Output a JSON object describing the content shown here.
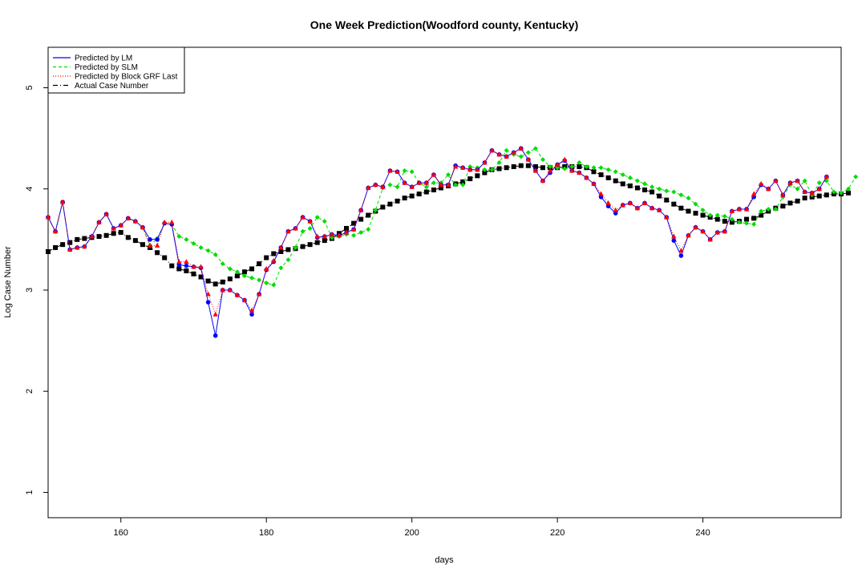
{
  "chart_data": {
    "type": "line",
    "title": "One Week Prediction(Woodford county, Kentucky)",
    "xlabel": "days",
    "ylabel": "Log Case Number",
    "xlim": [
      150,
      259
    ],
    "ylim": [
      0.75,
      5.4
    ],
    "xticks": [
      "160",
      "180",
      "200",
      "220",
      "240"
    ],
    "yticks": [
      "1",
      "2",
      "3",
      "4",
      "5"
    ],
    "grid": false,
    "legend_position": "top-left",
    "legend": [
      {
        "label": "Predicted by LM",
        "color": "#0000ff",
        "dash": "solid"
      },
      {
        "label": "Predicted by SLM",
        "color": "#00dd00",
        "dash": "dashed"
      },
      {
        "label": "Predicted by Block GRF Last",
        "color": "#ff0000",
        "dash": "dotted"
      },
      {
        "label": "Actual Case Number",
        "color": "#000000",
        "dash": "dashdot"
      }
    ],
    "x_start": 150,
    "series": [
      {
        "name": "Actual Case Number",
        "color": "#000000",
        "marker": "square",
        "values": [
          3.38,
          3.42,
          3.45,
          3.47,
          3.5,
          3.51,
          3.52,
          3.53,
          3.54,
          3.56,
          3.57,
          3.52,
          3.49,
          3.45,
          3.42,
          3.37,
          3.32,
          3.24,
          3.21,
          3.19,
          3.16,
          3.13,
          3.09,
          3.06,
          3.08,
          3.11,
          3.14,
          3.18,
          3.21,
          3.26,
          3.32,
          3.36,
          3.38,
          3.4,
          3.41,
          3.43,
          3.45,
          3.47,
          3.49,
          3.51,
          3.56,
          3.61,
          3.66,
          3.7,
          3.74,
          3.78,
          3.82,
          3.85,
          3.88,
          3.91,
          3.93,
          3.95,
          3.97,
          3.99,
          4.01,
          4.03,
          4.05,
          4.07,
          4.1,
          4.13,
          4.16,
          4.19,
          4.2,
          4.21,
          4.22,
          4.23,
          4.23,
          4.22,
          4.21,
          4.21,
          4.21,
          4.22,
          4.22,
          4.22,
          4.21,
          4.17,
          4.14,
          4.11,
          4.08,
          4.05,
          4.03,
          4.01,
          3.99,
          3.97,
          3.93,
          3.89,
          3.85,
          3.81,
          3.78,
          3.76,
          3.74,
          3.72,
          3.7,
          3.68,
          3.67,
          3.68,
          3.7,
          3.71,
          3.74,
          3.78,
          3.81,
          3.83,
          3.86,
          3.88,
          3.91,
          3.92,
          3.93,
          3.94,
          3.95,
          3.95,
          3.96
        ]
      },
      {
        "name": "Predicted by SLM",
        "color": "#00dd00",
        "marker": "diamond",
        "values": [
          3.72,
          3.58,
          3.87,
          3.4,
          3.42,
          3.43,
          3.53,
          3.67,
          3.75,
          3.61,
          3.64,
          3.71,
          3.68,
          3.62,
          3.44,
          3.51,
          3.66,
          3.65,
          3.53,
          3.5,
          3.46,
          3.42,
          3.39,
          3.35,
          3.26,
          3.21,
          3.18,
          3.14,
          3.12,
          3.1,
          3.07,
          3.05,
          3.22,
          3.3,
          3.42,
          3.58,
          3.61,
          3.72,
          3.68,
          3.52,
          3.53,
          3.55,
          3.54,
          3.57,
          3.6,
          3.79,
          4.01,
          4.04,
          4.02,
          4.18,
          4.17,
          4.06,
          4.02,
          4.06,
          4.06,
          4.14,
          4.04,
          4.04,
          4.22,
          4.21,
          4.19,
          4.19,
          4.26,
          4.38,
          4.34,
          4.32,
          4.36,
          4.4,
          4.29,
          4.22,
          4.21,
          4.2,
          4.22,
          4.26,
          4.22,
          4.21,
          4.21,
          4.19,
          4.17,
          4.14,
          4.11,
          4.08,
          4.05,
          4.02,
          4.0,
          3.98,
          3.97,
          3.94,
          3.91,
          3.85,
          3.79,
          3.74,
          3.74,
          3.73,
          3.7,
          3.67,
          3.66,
          3.65,
          3.78,
          3.8,
          3.8,
          3.92,
          4.04,
          4.0,
          4.08,
          3.94,
          4.06,
          4.08,
          3.97,
          3.96,
          4.0,
          4.12
        ]
      },
      {
        "name": "Predicted by LM",
        "color": "#0000ff",
        "marker": "circle",
        "values": [
          3.72,
          3.58,
          3.87,
          3.4,
          3.42,
          3.43,
          3.53,
          3.67,
          3.75,
          3.61,
          3.64,
          3.71,
          3.68,
          3.62,
          3.5,
          3.5,
          3.66,
          3.65,
          3.25,
          3.24,
          3.23,
          3.22,
          2.88,
          2.55,
          3.0,
          3.0,
          2.95,
          2.9,
          2.76,
          2.96,
          3.2,
          3.28,
          3.42,
          3.58,
          3.61,
          3.72,
          3.68,
          3.52,
          3.53,
          3.55,
          3.54,
          3.57,
          3.6,
          3.79,
          4.01,
          4.04,
          4.02,
          4.18,
          4.17,
          4.06,
          4.02,
          4.06,
          4.06,
          4.14,
          4.04,
          4.04,
          4.23,
          4.21,
          4.19,
          4.19,
          4.26,
          4.38,
          4.34,
          4.32,
          4.36,
          4.4,
          4.29,
          4.18,
          4.08,
          4.16,
          4.24,
          4.28,
          4.18,
          4.16,
          4.11,
          4.05,
          3.92,
          3.83,
          3.76,
          3.84,
          3.86,
          3.81,
          3.86,
          3.81,
          3.79,
          3.72,
          3.49,
          3.34,
          3.54,
          3.62,
          3.58,
          3.5,
          3.57,
          3.58,
          3.78,
          3.8,
          3.8,
          3.92,
          4.04,
          4.0,
          4.08,
          3.94,
          4.06,
          4.08,
          3.97,
          3.96,
          4.0,
          4.12
        ]
      },
      {
        "name": "Predicted by Block GRF Last",
        "color": "#ff0000",
        "marker": "triangle",
        "values": [
          3.72,
          3.58,
          3.87,
          3.4,
          3.42,
          3.43,
          3.53,
          3.67,
          3.75,
          3.61,
          3.64,
          3.71,
          3.68,
          3.62,
          3.44,
          3.44,
          3.67,
          3.67,
          3.28,
          3.28,
          3.23,
          3.23,
          2.96,
          2.76,
          3.0,
          3.0,
          2.95,
          2.9,
          2.8,
          2.96,
          3.21,
          3.29,
          3.42,
          3.58,
          3.61,
          3.72,
          3.68,
          3.53,
          3.53,
          3.55,
          3.54,
          3.57,
          3.6,
          3.79,
          4.01,
          4.04,
          4.02,
          4.18,
          4.17,
          4.06,
          4.02,
          4.06,
          4.06,
          4.14,
          4.04,
          4.04,
          4.22,
          4.21,
          4.19,
          4.19,
          4.26,
          4.38,
          4.34,
          4.32,
          4.36,
          4.4,
          4.29,
          4.18,
          4.08,
          4.18,
          4.24,
          4.29,
          4.18,
          4.16,
          4.11,
          4.05,
          3.95,
          3.86,
          3.79,
          3.84,
          3.86,
          3.81,
          3.86,
          3.81,
          3.79,
          3.72,
          3.53,
          3.39,
          3.54,
          3.62,
          3.58,
          3.5,
          3.57,
          3.58,
          3.78,
          3.8,
          3.8,
          3.95,
          4.05,
          4.0,
          4.08,
          3.94,
          4.06,
          4.08,
          3.97,
          3.96,
          4.0,
          4.12
        ]
      }
    ]
  }
}
